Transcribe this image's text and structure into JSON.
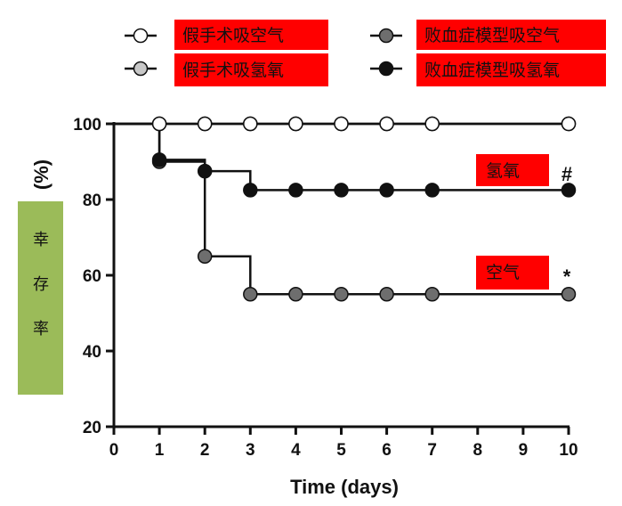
{
  "chart_data": {
    "type": "line",
    "step": true,
    "xlabel": "Time (days)",
    "ylabel_unit": "(%)",
    "ylabel_text": [
      "幸",
      "存",
      "率"
    ],
    "xlim": [
      0,
      10
    ],
    "ylim": [
      20,
      100
    ],
    "xticks": [
      0,
      1,
      2,
      3,
      4,
      5,
      6,
      7,
      8,
      9,
      10
    ],
    "yticks": [
      20,
      40,
      60,
      80,
      100
    ],
    "legend_position": "top",
    "series": [
      {
        "name": "假手术吸空气",
        "marker_fill": "#ffffff",
        "x": [
          1,
          2,
          3,
          4,
          5,
          6,
          7,
          10
        ],
        "y": [
          100,
          100,
          100,
          100,
          100,
          100,
          100,
          100
        ]
      },
      {
        "name": "假手术吸氢氧",
        "marker_fill": "#c8c8c8",
        "x": [
          1,
          2,
          3,
          4,
          5,
          6,
          7,
          10
        ],
        "y": [
          100,
          100,
          100,
          100,
          100,
          100,
          100,
          100
        ]
      },
      {
        "name": "败血症模型吸空气",
        "marker_fill": "#6e6e6e",
        "x": [
          1,
          2,
          3,
          4,
          5,
          6,
          7,
          10
        ],
        "y": [
          90,
          65,
          55,
          55,
          55,
          55,
          55,
          55
        ]
      },
      {
        "name": "败血症模型吸氢氧",
        "marker_fill": "#111111",
        "x": [
          1,
          2,
          3,
          4,
          5,
          6,
          7,
          10
        ],
        "y": [
          90.5,
          87.5,
          82.5,
          82.5,
          82.5,
          82.5,
          82.5,
          82.5
        ]
      }
    ],
    "annotations": [
      {
        "label": "氢氧",
        "mark": "#",
        "series": "败血症模型吸氢氧"
      },
      {
        "label": "空气",
        "mark": "*",
        "series": "败血症模型吸空气"
      }
    ],
    "colors": {
      "label_box": "#ff0000",
      "ylabel_box": "#9bbb59",
      "line": "#111111"
    }
  }
}
